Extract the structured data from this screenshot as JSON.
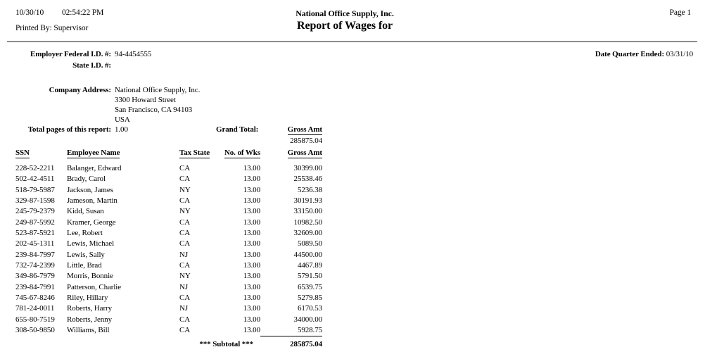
{
  "header": {
    "print_date": "10/30/10",
    "print_time": "02:54:22 PM",
    "printed_by_label": "Printed By:",
    "printed_by": "Supervisor",
    "company_title": "National Office Supply, Inc.",
    "report_title": "Report of Wages for",
    "page_label": "Page 1"
  },
  "info": {
    "federal_id_label": "Employer Federal I.D. #:",
    "federal_id": "94-4454555",
    "state_id_label": "State I.D. #:",
    "state_id": "",
    "date_quarter_label": "Date Quarter Ended:",
    "date_quarter": "03/31/10",
    "company_address_label": "Company Address:",
    "company_address_lines": [
      "National Office Supply, Inc.",
      "3300 Howard Street",
      "San Francisco, CA 94103",
      "USA"
    ],
    "total_pages_label": "Total pages of this report:",
    "total_pages": "1.00",
    "grand_total_label": "Grand Total:",
    "grand_total_column": "Gross Amt",
    "grand_total_value": "285875.04"
  },
  "table": {
    "headers": [
      "SSN",
      "Employee Name",
      "Tax State",
      "No. of Wks",
      "Gross Amt"
    ],
    "rows": [
      [
        "228-52-2211",
        "Balanger, Edward",
        "CA",
        "13.00",
        "30399.00"
      ],
      [
        "502-42-4511",
        "Brady, Carol",
        "CA",
        "13.00",
        "25538.46"
      ],
      [
        "518-79-5987",
        "Jackson, James",
        "NY",
        "13.00",
        "5236.38"
      ],
      [
        "329-87-1598",
        "Jameson, Martin",
        "CA",
        "13.00",
        "30191.93"
      ],
      [
        "245-79-2379",
        "Kidd, Susan",
        "NY",
        "13.00",
        "33150.00"
      ],
      [
        "249-87-5992",
        "Kramer, George",
        "CA",
        "13.00",
        "10982.50"
      ],
      [
        "523-87-5921",
        "Lee, Robert",
        "CA",
        "13.00",
        "32609.00"
      ],
      [
        "202-45-1311",
        "Lewis, Michael",
        "CA",
        "13.00",
        "5089.50"
      ],
      [
        "239-84-7997",
        "Lewis, Sally",
        "NJ",
        "13.00",
        "44500.00"
      ],
      [
        "732-74-2399",
        "Little, Brad",
        "CA",
        "13.00",
        "4467.89"
      ],
      [
        "349-86-7979",
        "Morris, Bonnie",
        "NY",
        "13.00",
        "5791.50"
      ],
      [
        "239-84-7991",
        "Patterson, Charlie",
        "NJ",
        "13.00",
        "6539.75"
      ],
      [
        "745-67-8246",
        "Riley, Hillary",
        "CA",
        "13.00",
        "5279.85"
      ],
      [
        "781-24-0011",
        "Roberts, Harry",
        "NJ",
        "13.00",
        "6170.53"
      ],
      [
        "655-80-7519",
        "Roberts, Jenny",
        "CA",
        "13.00",
        "34000.00"
      ],
      [
        "308-50-9850",
        "Williams, Bill",
        "CA",
        "13.00",
        "5928.75"
      ]
    ],
    "subtotal_label": "*** Subtotal ***",
    "subtotal_value": "285875.04"
  }
}
